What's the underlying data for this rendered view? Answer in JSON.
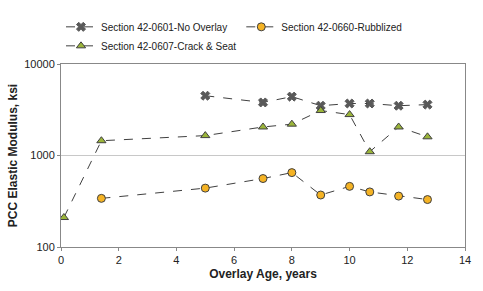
{
  "chart_data": {
    "type": "line",
    "x_label": "Overlay Age, years",
    "y_label": "PCC Elastic Modulus, ksi",
    "log": "y",
    "grid": true,
    "legend": "top",
    "xlim": [
      0,
      14
    ],
    "xticks": [
      0,
      2,
      4,
      6,
      8,
      10,
      12,
      14
    ],
    "ylim": [
      100,
      10000
    ],
    "yticks": [
      100,
      1000,
      10000
    ],
    "series": [
      {
        "name": "Section 42-0601-No Overlay",
        "color": "#595959",
        "marker": "x",
        "line_style": "dash",
        "x": [
          5,
          7,
          8,
          9,
          10,
          10.7,
          11.7,
          12.7
        ],
        "values": [
          4500,
          3800,
          4400,
          3500,
          3700,
          3700,
          3500,
          3600
        ]
      },
      {
        "name": "Section 42-0660-Rubblized",
        "color": "#f5b324",
        "marker": "circle",
        "line_style": "dash",
        "x": [
          1.4,
          5,
          7,
          8,
          9,
          10,
          10.7,
          11.7,
          12.7
        ],
        "values": [
          340,
          440,
          560,
          650,
          370,
          460,
          400,
          360,
          330
        ]
      },
      {
        "name": "Section 42-0607-Crack & Seat",
        "color": "#9bb53a",
        "marker": "triangle-up",
        "line_style": "dash",
        "x": [
          0.1,
          1.4,
          5,
          7,
          8,
          9,
          10,
          10.7,
          11.7,
          12.7
        ],
        "values": [
          210,
          1450,
          1650,
          2050,
          2200,
          3100,
          2800,
          1100,
          2050,
          1600
        ]
      }
    ]
  }
}
